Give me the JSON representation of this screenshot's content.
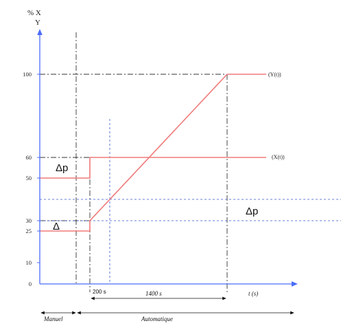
{
  "axis": {
    "y_label_line1": "% X",
    "y_label_line2": "Y",
    "x_label": "t (s)",
    "y_ticks": [
      "100",
      "60",
      "50",
      "30",
      "25",
      "10",
      "0"
    ]
  },
  "curves": {
    "y_label": "(Y(t))",
    "x_label": "(X(t))"
  },
  "annotations": {
    "delta_p_left": "Δp",
    "delta_left": "Δ",
    "delta_p_right": "Δp",
    "interval_200": "200 s",
    "interval_1400": "1400 s"
  },
  "modes": {
    "manual": "Manuel",
    "automatic": "Automatique"
  },
  "colors": {
    "axis": "#4a6cf7",
    "curve": "#f07a7a",
    "guide_dashdot": "#333333",
    "guide_blue": "#3355cc"
  }
}
